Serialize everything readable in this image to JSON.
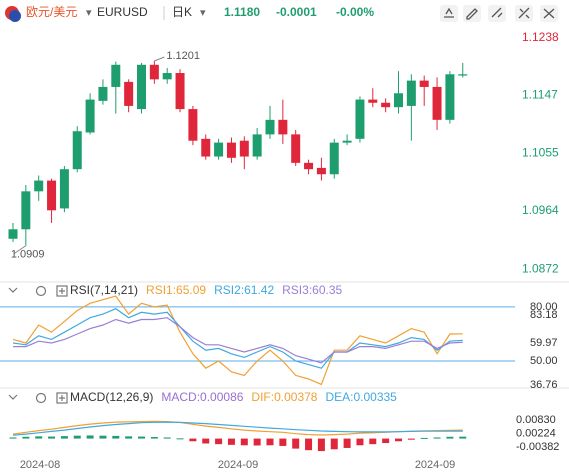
{
  "header": {
    "name": "欧元/美元",
    "symbol": "EURUSD",
    "period": "日K",
    "price": "1.1180",
    "change": "-0.0001",
    "change_pct": "-0.00%"
  },
  "chart_data": [
    {
      "type": "candlestick",
      "up_color": "#1e9e6e",
      "down_color": "#e0263a",
      "open": [
        1.092,
        1.0935,
        1.0995,
        1.1012,
        1.0968,
        1.103,
        1.1088,
        1.1138,
        1.116,
        1.1168,
        1.1125,
        1.1195,
        1.1172,
        1.1182,
        1.1125,
        1.1078,
        1.105,
        1.1072,
        1.1075,
        1.105,
        1.1085,
        1.1108,
        1.1085,
        1.104,
        1.1032,
        1.1022,
        1.1072,
        1.1078,
        1.114,
        1.1135,
        1.1128,
        1.113,
        1.117,
        1.116,
        1.1108,
        1.1178
      ],
      "high": [
        1.0945,
        1.1005,
        1.102,
        1.1015,
        1.1035,
        1.1098,
        1.115,
        1.1172,
        1.12,
        1.1172,
        1.1198,
        1.1201,
        1.119,
        1.1188,
        1.113,
        1.1085,
        1.1078,
        1.108,
        1.1082,
        1.1095,
        1.113,
        1.114,
        1.1092,
        1.1045,
        1.1048,
        1.1078,
        1.1085,
        1.1145,
        1.1158,
        1.1142,
        1.1185,
        1.118,
        1.1178,
        1.1175,
        1.1185,
        1.1198
      ],
      "low": [
        1.0915,
        1.0909,
        1.098,
        1.0945,
        1.0962,
        1.1025,
        1.1085,
        1.1132,
        1.1118,
        1.112,
        1.1118,
        1.1165,
        1.1165,
        1.112,
        1.1068,
        1.1045,
        1.1045,
        1.104,
        1.103,
        1.1045,
        1.1078,
        1.107,
        1.1035,
        1.1022,
        1.1012,
        1.1015,
        1.1068,
        1.1072,
        1.1128,
        1.112,
        1.1118,
        1.1075,
        1.113,
        1.1092,
        1.1102,
        1.1175
      ],
      "close": [
        1.0935,
        1.0995,
        1.1012,
        1.0965,
        1.103,
        1.109,
        1.114,
        1.116,
        1.1195,
        1.113,
        1.1195,
        1.1172,
        1.1182,
        1.1125,
        1.1075,
        1.105,
        1.1072,
        1.1048,
        1.105,
        1.1085,
        1.1108,
        1.1085,
        1.104,
        1.103,
        1.1022,
        1.1072,
        1.1075,
        1.114,
        1.1135,
        1.1128,
        1.115,
        1.117,
        1.116,
        1.1108,
        1.118,
        1.118
      ],
      "ylim": [
        1.0858,
        1.125
      ],
      "yticks": [
        1.1238,
        1.1147,
        1.1055,
        1.0964,
        1.0872
      ],
      "annotations": [
        1.1201,
        1.0909
      ],
      "x_labels": [
        "2024-08",
        "2024-09",
        "2024-09"
      ]
    },
    {
      "type": "line",
      "title": "RSI(7,14,21)",
      "series": [
        {
          "name": "RSI1:65.09",
          "color": "#f0a033",
          "values": [
            62,
            60,
            70,
            66,
            72,
            78,
            82,
            84,
            86,
            76,
            82,
            80,
            81,
            66,
            54,
            46,
            50,
            44,
            42,
            50,
            56,
            50,
            42,
            40,
            37,
            56,
            56,
            64,
            62,
            60,
            64,
            68,
            66,
            54,
            65,
            65.09
          ]
        },
        {
          "name": "RSI2:61.42",
          "color": "#3fa9e0",
          "values": [
            60,
            59,
            64,
            62,
            66,
            70,
            74,
            76,
            79,
            74,
            77,
            76,
            77,
            69,
            61,
            56,
            57,
            54,
            52,
            55,
            58,
            55,
            50,
            48,
            46,
            55,
            55,
            60,
            59,
            58,
            60,
            63,
            62,
            56,
            61,
            61.42
          ]
        },
        {
          "name": "RSI3:60.35",
          "color": "#9a7fd6",
          "values": [
            58,
            58,
            61,
            60,
            62,
            65,
            68,
            70,
            73,
            71,
            73,
            73,
            74,
            69,
            63,
            59,
            59,
            57,
            55,
            57,
            59,
            57,
            53,
            51,
            49,
            55,
            55,
            58,
            58,
            57,
            59,
            61,
            61,
            57,
            60,
            60.35
          ]
        }
      ],
      "ylim": [
        33.9,
        89.4
      ],
      "reference_lines": [
        {
          "value": 80,
          "label": "80.00"
        },
        {
          "value": 50,
          "label": "50.00"
        }
      ],
      "yticks": [
        83.18,
        59.97,
        36.76
      ]
    },
    {
      "type": "macd",
      "title": "MACD(12,26,9)",
      "up_color": "#1e9e6e",
      "down_color": "#e0263a",
      "series": [
        {
          "name": "MACD:0.00086",
          "color": "#9a6fd0",
          "values": [
            0.0005,
            0.0008,
            0.001,
            0.0009,
            0.0011,
            0.0013,
            0.0014,
            0.0013,
            0.0012,
            0.001,
            0.0009,
            0.0007,
            0.0005,
            0.0001,
            -0.0012,
            -0.0022,
            -0.0025,
            -0.0028,
            -0.003,
            -0.0031,
            -0.003,
            -0.0033,
            -0.0045,
            -0.0052,
            -0.0056,
            -0.0048,
            -0.0042,
            -0.003,
            -0.0025,
            -0.002,
            -0.0012,
            -0.0005,
            0.0003,
            0.0005,
            0.0008,
            0.00086
          ]
        },
        {
          "name": "DIF:0.00378",
          "color": "#f0a033",
          "values": [
            0.002,
            0.0028,
            0.0036,
            0.0042,
            0.005,
            0.0058,
            0.0065,
            0.007,
            0.0074,
            0.0075,
            0.0076,
            0.0077,
            0.0076,
            0.0072,
            0.0064,
            0.0056,
            0.005,
            0.0044,
            0.0038,
            0.0034,
            0.0031,
            0.0028,
            0.0022,
            0.0018,
            0.0016,
            0.0018,
            0.002,
            0.0024,
            0.0026,
            0.0028,
            0.0031,
            0.0033,
            0.0035,
            0.0036,
            0.0037,
            0.00378
          ]
        },
        {
          "name": "DEA:0.00335",
          "color": "#3fa9e0",
          "values": [
            0.0015,
            0.002,
            0.0026,
            0.0032,
            0.0038,
            0.0045,
            0.0052,
            0.0058,
            0.0063,
            0.0067,
            0.0071,
            0.0073,
            0.0074,
            0.0073,
            0.007,
            0.0067,
            0.0063,
            0.0059,
            0.0055,
            0.0051,
            0.0047,
            0.0044,
            0.004,
            0.0037,
            0.0034,
            0.0032,
            0.0031,
            0.003,
            0.003,
            0.003,
            0.0031,
            0.0032,
            0.0033,
            0.0033,
            0.00334,
            0.00335
          ]
        }
      ],
      "ylim": [
        -0.0105,
        0.0164
      ],
      "yticks": [
        {
          "value": 0.0083,
          "label": "0.00830"
        },
        0.00224,
        -0.00382
      ]
    }
  ]
}
